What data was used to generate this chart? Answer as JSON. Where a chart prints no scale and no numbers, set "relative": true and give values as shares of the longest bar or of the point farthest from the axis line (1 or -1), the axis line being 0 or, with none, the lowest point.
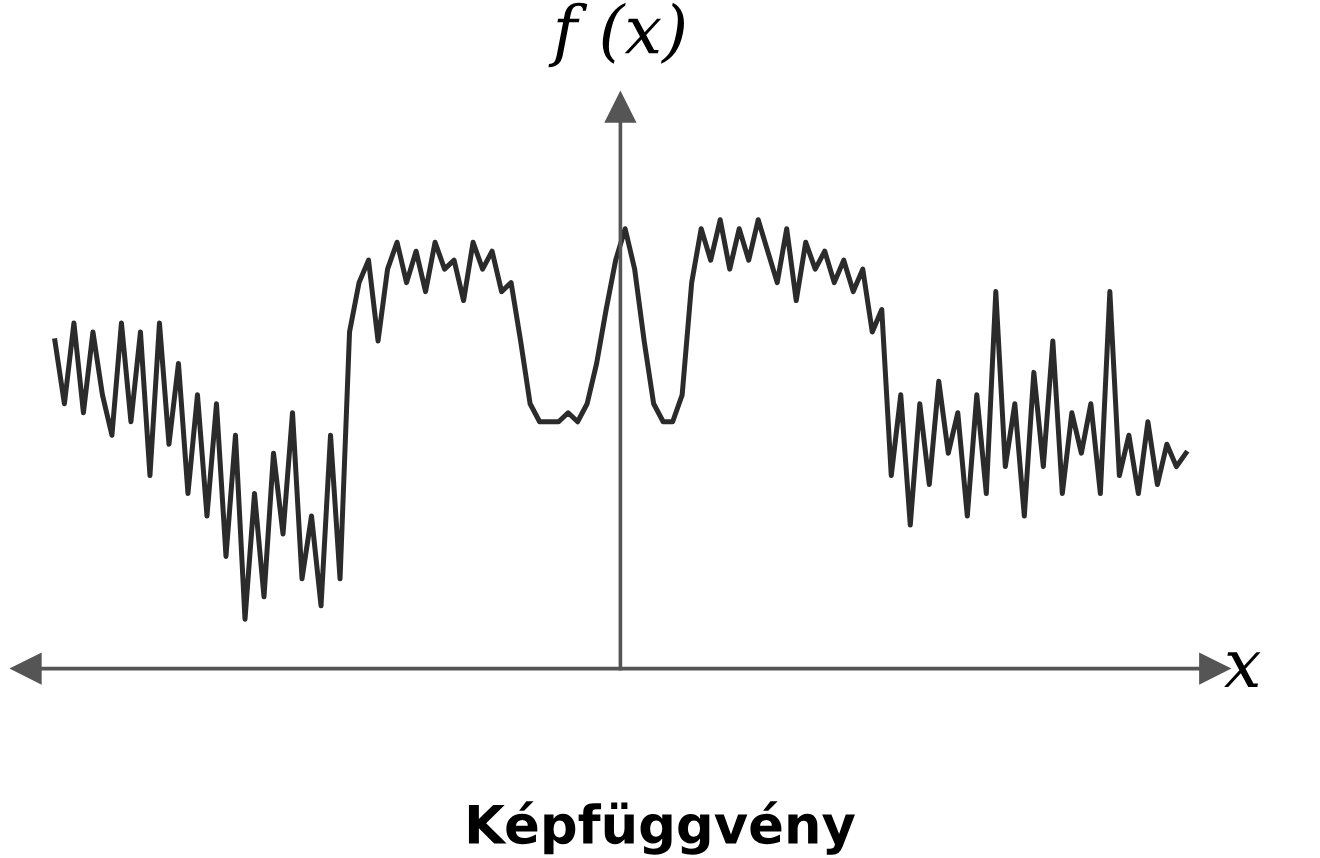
{
  "chart_data": {
    "type": "line",
    "title": "Képfüggvény",
    "xlabel": "x",
    "ylabel": "f (x)",
    "relative": true,
    "color": "#2b2b2b",
    "categories": [
      null,
      null,
      null,
      null,
      null,
      null,
      null,
      null,
      null,
      null,
      null,
      null,
      null,
      null,
      null,
      null,
      null,
      null,
      null,
      null,
      null,
      null,
      null,
      null,
      null,
      null,
      null,
      null,
      null,
      null,
      null,
      null,
      null,
      null,
      null,
      null,
      null,
      null,
      null,
      null,
      null,
      null,
      null,
      null,
      null,
      null,
      null,
      null,
      null,
      null,
      null,
      null,
      null,
      null,
      null,
      null,
      null,
      null,
      null,
      null,
      null,
      null,
      null,
      null,
      null,
      null,
      null,
      null,
      null,
      null,
      null,
      null,
      null,
      null,
      null,
      null,
      null,
      null,
      null,
      null,
      null,
      null,
      null,
      null,
      null,
      null,
      null,
      null,
      null,
      null,
      null,
      null,
      null,
      null,
      null,
      null,
      null,
      null,
      null,
      null,
      null,
      null,
      null,
      null,
      null,
      null,
      null,
      null,
      null,
      null,
      null,
      null,
      null,
      null,
      null,
      null,
      null,
      null,
      null,
      null
    ],
    "values": [
      0.73,
      0.59,
      0.77,
      0.57,
      0.75,
      0.61,
      0.52,
      0.77,
      0.55,
      0.75,
      0.43,
      0.77,
      0.5,
      0.68,
      0.39,
      0.61,
      0.34,
      0.59,
      0.25,
      0.52,
      0.11,
      0.39,
      0.16,
      0.48,
      0.3,
      0.57,
      0.2,
      0.34,
      0.14,
      0.52,
      0.2,
      0.75,
      0.86,
      0.91,
      0.73,
      0.89,
      0.95,
      0.86,
      0.93,
      0.84,
      0.95,
      0.89,
      0.91,
      0.82,
      0.95,
      0.89,
      0.93,
      0.84,
      0.86,
      0.73,
      0.59,
      0.55,
      0.55,
      0.55,
      0.57,
      0.55,
      0.59,
      0.68,
      0.8,
      0.91,
      0.98,
      0.89,
      0.73,
      0.59,
      0.55,
      0.55,
      0.61,
      0.86,
      0.98,
      0.91,
      1,
      0.89,
      0.98,
      0.91,
      1,
      0.93,
      0.86,
      0.98,
      0.82,
      0.95,
      0.89,
      0.93,
      0.86,
      0.91,
      0.84,
      0.89,
      0.75,
      0.8,
      0.43,
      0.61,
      0.32,
      0.59,
      0.41,
      0.64,
      0.48,
      0.57,
      0.34,
      0.61,
      0.39,
      0.84,
      0.45,
      0.59,
      0.34,
      0.66,
      0.45,
      0.73,
      0.39,
      0.57,
      0.48,
      0.59,
      0.39,
      0.84,
      0.43,
      0.52,
      0.39,
      0.55,
      0.41,
      0.5,
      0.45,
      0.48
    ]
  }
}
